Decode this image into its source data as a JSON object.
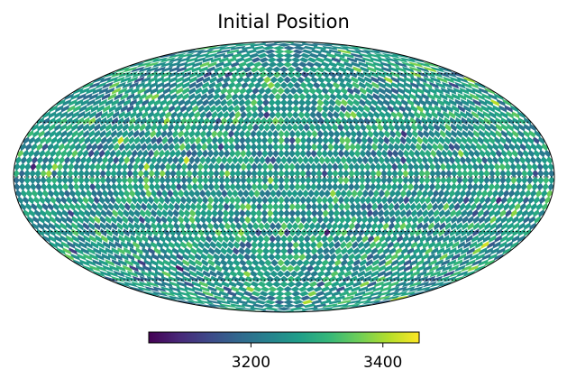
{
  "chart_data": {
    "type": "heatmap",
    "title": "Initial Position",
    "projection": "mollweide",
    "colormap": "viridis",
    "colormap_stops": [
      "#440154",
      "#482878",
      "#3e4989",
      "#31688e",
      "#26828e",
      "#1f9e89",
      "#35b779",
      "#6ece58",
      "#b5de2b",
      "#fde725"
    ],
    "value_range": [
      3045,
      3455
    ],
    "value_mean": 3260,
    "value_spread": 48,
    "colorbar": {
      "position": "bottom",
      "ticks": [
        {
          "value": 3200,
          "label": "3200"
        },
        {
          "value": 3400,
          "label": "3400"
        }
      ]
    },
    "graticule": {
      "meridians_deg": [
        -180,
        -120,
        -60,
        0,
        60,
        120,
        180
      ],
      "parallels_deg": [
        -60,
        -30,
        0,
        30,
        60
      ],
      "style": "dotted"
    },
    "grid": true
  }
}
